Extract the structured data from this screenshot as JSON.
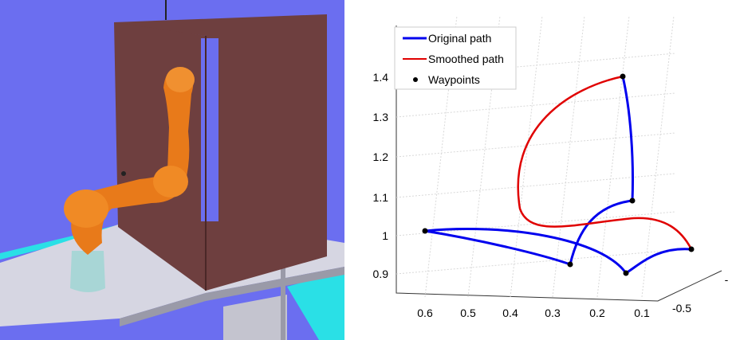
{
  "scene": {
    "colors": {
      "background": "#6b6ef0",
      "door": "#6e3f3f",
      "robot": "#e87a1a",
      "base": "#a8d6d6",
      "table": "#d3d3de",
      "table_edge": "#22e0e6"
    }
  },
  "legend": {
    "original": "Original path",
    "smoothed": "Smoothed path",
    "waypoints": "Waypoints"
  },
  "chart_data": {
    "type": "line",
    "title": "",
    "xlabel": "",
    "ylabel": "",
    "zlabel": "",
    "projection": "3d",
    "grid": true,
    "legend_position": "top-left",
    "x_ticks": [
      "0.6",
      "0.5",
      "0.4",
      "0.3",
      "0.2",
      "0.1"
    ],
    "y_ticks": [
      "-0.5",
      "-"
    ],
    "z_ticks": [
      "0.9",
      "1",
      "1.1",
      "1.2",
      "1.3",
      "1.4"
    ],
    "series": [
      {
        "name": "Original path",
        "color": "#0000ee"
      },
      {
        "name": "Smoothed path",
        "color": "#e00000"
      },
      {
        "name": "Waypoints",
        "color": "#000000"
      }
    ],
    "waypoint_count": 6
  }
}
